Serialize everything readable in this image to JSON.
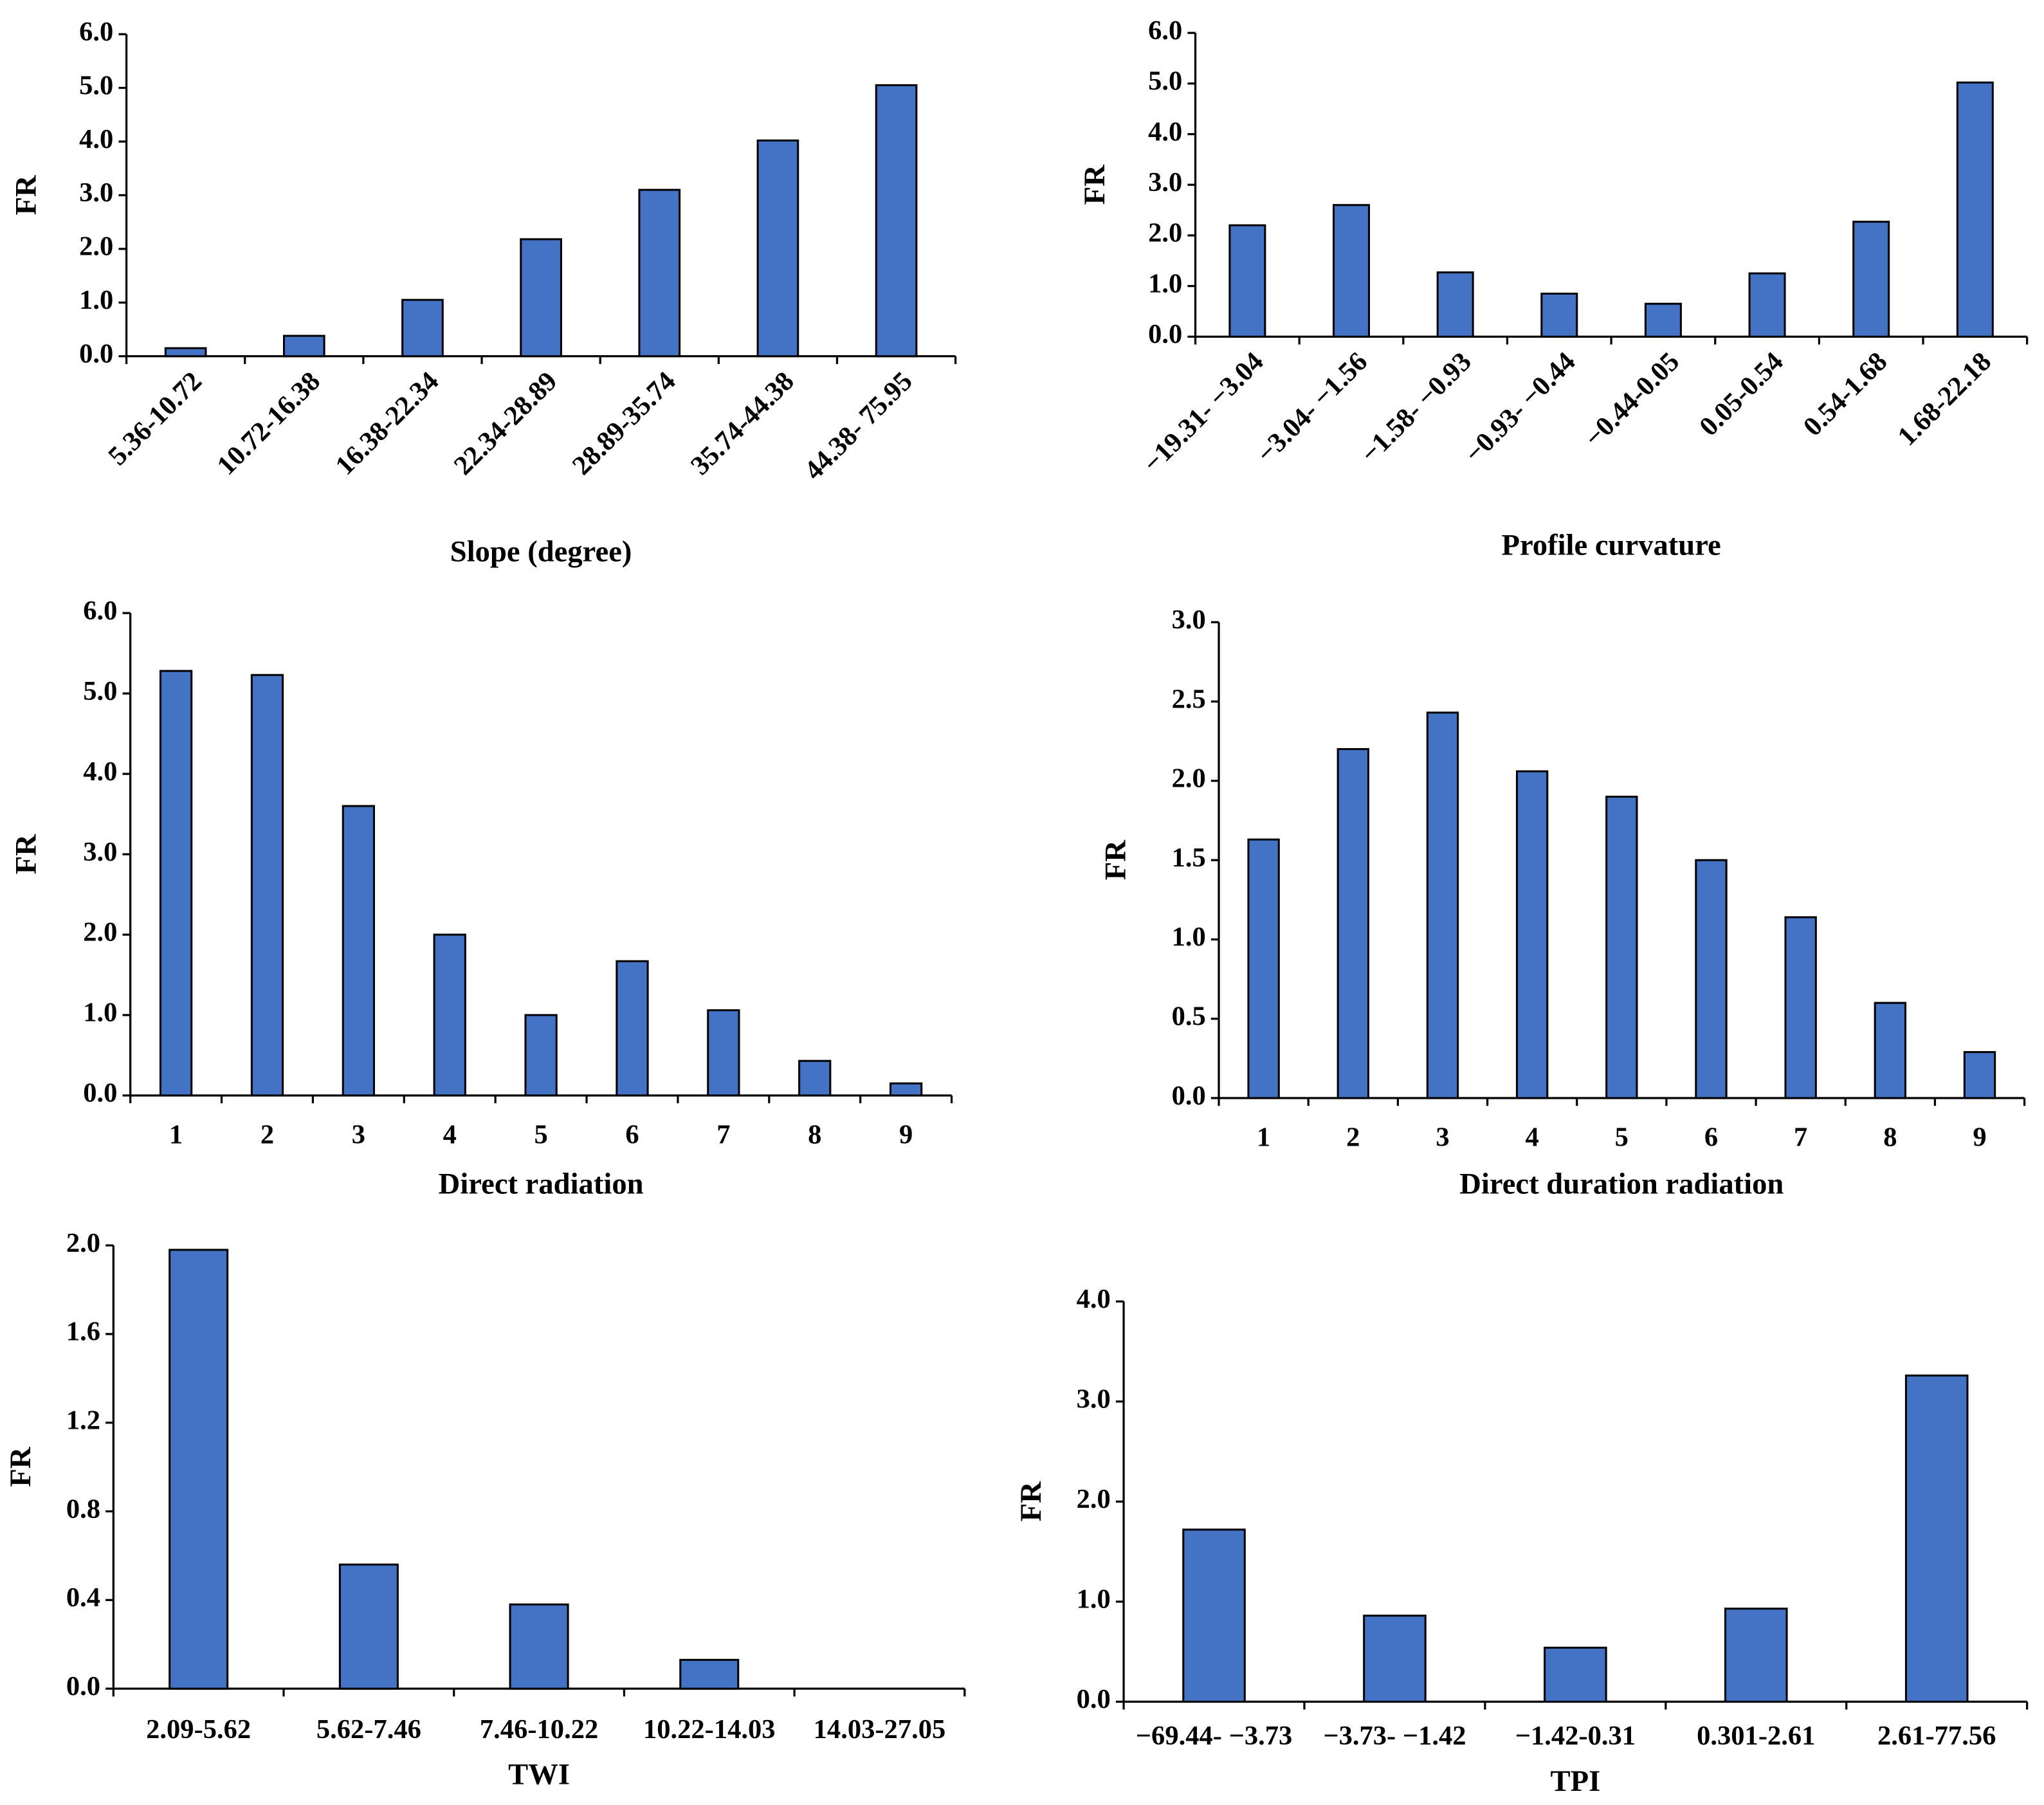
{
  "chart_data": [
    {
      "type": "bar",
      "x_label": "Slope (degree)",
      "y_label": "FR",
      "color": "#4472c4",
      "categories": [
        "5.36-10.72",
        "10.72-16.38",
        "16.38-22.34",
        "22.34-28.89",
        "28.89-35.74",
        "35.74-44.38",
        "44.38- 75.95"
      ],
      "values": [
        0.15,
        0.38,
        1.05,
        2.18,
        3.1,
        4.02,
        5.05
      ],
      "ylim": [
        0,
        6
      ],
      "yticks": [
        {
          "value": 0,
          "label": "0.0"
        },
        {
          "value": 1,
          "label": "1.0"
        },
        {
          "value": 2,
          "label": "2.0"
        },
        {
          "value": 3,
          "label": "3.0"
        },
        {
          "value": 4,
          "label": "4.0"
        },
        {
          "value": 5,
          "label": "5.0"
        },
        {
          "value": 6,
          "label": "6.0"
        }
      ]
    },
    {
      "type": "bar",
      "x_label": "Profile curvature",
      "y_label": "FR",
      "color": "#4472c4",
      "categories": [
        "−19.31- −3.04",
        "−3.04- −1.56",
        "−1.58- −0.93",
        "−0.93- −0.44",
        "−0.44-0.05",
        "0.05-0.54",
        "0.54-1.68",
        "1.68-22.18"
      ],
      "values": [
        2.2,
        2.6,
        1.27,
        0.85,
        0.65,
        1.25,
        2.27,
        5.02
      ],
      "ylim": [
        0,
        6
      ],
      "yticks": [
        {
          "value": 0,
          "label": "0.0"
        },
        {
          "value": 1,
          "label": "1.0"
        },
        {
          "value": 2,
          "label": "2.0"
        },
        {
          "value": 3,
          "label": "3.0"
        },
        {
          "value": 4,
          "label": "4.0"
        },
        {
          "value": 5,
          "label": "5.0"
        },
        {
          "value": 6,
          "label": "6.0"
        }
      ]
    },
    {
      "type": "bar",
      "x_label": "Direct radiation",
      "y_label": "FR",
      "color": "#4472c4",
      "categories": [
        "1",
        "2",
        "3",
        "4",
        "5",
        "6",
        "7",
        "8",
        "9"
      ],
      "values": [
        5.28,
        5.23,
        3.6,
        2.0,
        1.0,
        1.67,
        1.06,
        0.43,
        0.15
      ],
      "ylim": [
        0,
        6
      ],
      "yticks": [
        {
          "value": 0,
          "label": "0.0"
        },
        {
          "value": 1,
          "label": "1.0"
        },
        {
          "value": 2,
          "label": "2.0"
        },
        {
          "value": 3,
          "label": "3.0"
        },
        {
          "value": 4,
          "label": "4.0"
        },
        {
          "value": 5,
          "label": "5.0"
        },
        {
          "value": 6,
          "label": "6.0"
        }
      ]
    },
    {
      "type": "bar",
      "x_label": "Direct duration radiation",
      "y_label": "FR",
      "color": "#4472c4",
      "categories": [
        "1",
        "2",
        "3",
        "4",
        "5",
        "6",
        "7",
        "8",
        "9"
      ],
      "values": [
        1.63,
        2.2,
        2.43,
        2.06,
        1.9,
        1.5,
        1.14,
        0.6,
        0.29
      ],
      "ylim": [
        0,
        3
      ],
      "yticks": [
        {
          "value": 0,
          "label": "0.0"
        },
        0.5,
        {
          "value": 1,
          "label": "1.0"
        },
        1.5,
        {
          "value": 2,
          "label": "2.0"
        },
        2.5,
        {
          "value": 3,
          "label": "3.0"
        }
      ]
    },
    {
      "type": "bar",
      "x_label": "TWI",
      "y_label": "FR",
      "color": "#4472c4",
      "categories": [
        "2.09-5.62",
        "5.62-7.46",
        "7.46-10.22",
        "10.22-14.03",
        "14.03-27.05"
      ],
      "values": [
        1.98,
        0.56,
        0.38,
        0.13,
        0
      ],
      "ylim": [
        0,
        2
      ],
      "yticks": [
        {
          "value": 0,
          "label": "0.0"
        },
        0.4,
        0.8,
        1.2,
        1.6,
        {
          "value": 2,
          "label": "2.0"
        }
      ]
    },
    {
      "type": "bar",
      "x_label": "TPI",
      "y_label": "FR",
      "color": "#4472c4",
      "categories": [
        "−69.44- −3.73",
        "−3.73- −1.42",
        "−1.42-0.31",
        "0.301-2.61",
        "2.61-77.56"
      ],
      "values": [
        1.72,
        0.86,
        0.54,
        0.93,
        3.26
      ],
      "ylim": [
        0,
        4
      ],
      "yticks": [
        {
          "value": 0,
          "label": "0.0"
        },
        {
          "value": 1,
          "label": "1.0"
        },
        {
          "value": 2,
          "label": "2.0"
        },
        {
          "value": 3,
          "label": "3.0"
        },
        {
          "value": 4,
          "label": "4.0"
        }
      ]
    }
  ]
}
